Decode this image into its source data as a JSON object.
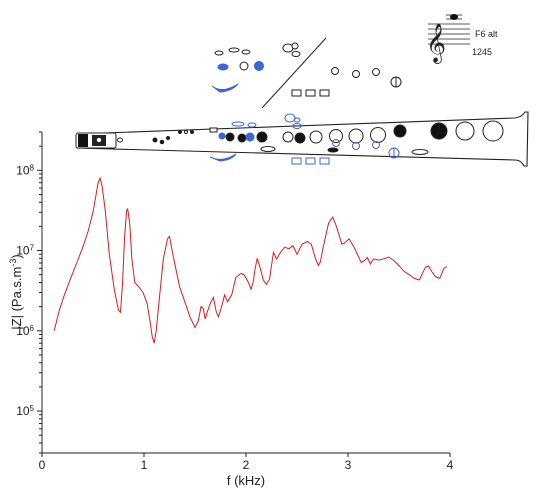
{
  "chart_data": {
    "type": "line",
    "title": "",
    "xlabel": "f (kHz)",
    "ylabel": "|Z| (Pa.s.m",
    "ylabel_sup": "-3",
    "ylabel_close": ")",
    "xlim": [
      0,
      4
    ],
    "ylim": [
      30000,
      300000000
    ],
    "yscale": "log",
    "grid": false,
    "x_ticks": [
      0,
      1,
      2,
      3,
      4
    ],
    "x_tick_labels": [
      "0",
      "1",
      "2",
      "3",
      "4"
    ],
    "y_ticks": [
      100000,
      1000000,
      10000000,
      100000000
    ],
    "y_tick_labels": [
      {
        "base": "10",
        "exp": "5"
      },
      {
        "base": "10",
        "exp": "6"
      },
      {
        "base": "10",
        "exp": "7"
      },
      {
        "base": "10",
        "exp": "8"
      }
    ],
    "series": [
      {
        "color": "#e0191e",
        "x": [
          0.12,
          0.17,
          0.22,
          0.28,
          0.34,
          0.4,
          0.45,
          0.5,
          0.53,
          0.55,
          0.57,
          0.59,
          0.62,
          0.66,
          0.71,
          0.75,
          0.77,
          0.79,
          0.81,
          0.83,
          0.84,
          0.86,
          0.88,
          0.91,
          0.95,
          0.99,
          1.03,
          1.06,
          1.08,
          1.1,
          1.12,
          1.15,
          1.19,
          1.23,
          1.25,
          1.27,
          1.3,
          1.35,
          1.4,
          1.45,
          1.5,
          1.53,
          1.56,
          1.58,
          1.6,
          1.62,
          1.65,
          1.68,
          1.71,
          1.73,
          1.75,
          1.77,
          1.79,
          1.82,
          1.86,
          1.9,
          1.95,
          1.98,
          2.02,
          2.05,
          2.07,
          2.09,
          2.11,
          2.14,
          2.17,
          2.2,
          2.23,
          2.25,
          2.27,
          2.3,
          2.34,
          2.38,
          2.42,
          2.46,
          2.5,
          2.55,
          2.6,
          2.64,
          2.68,
          2.71,
          2.73,
          2.75,
          2.78,
          2.81,
          2.85,
          2.88,
          2.91,
          2.94,
          2.97,
          3.01,
          3.06,
          3.1,
          3.13,
          3.16,
          3.19,
          3.22,
          3.25,
          3.3,
          3.35,
          3.4,
          3.45,
          3.5,
          3.55,
          3.6,
          3.65,
          3.7,
          3.73,
          3.76,
          3.79,
          3.82,
          3.86,
          3.9,
          3.94,
          3.97
        ],
        "y": [
          1000000,
          1800000,
          2800000,
          4500000,
          7000000,
          11000000,
          17000000,
          30000000,
          50000000,
          70000000,
          80000000,
          62000000,
          32000000,
          9000000,
          3200000,
          1800000,
          1700000,
          4000000,
          15000000,
          32000000,
          33000000,
          22000000,
          8000000,
          4000000,
          3500000,
          3000000,
          2200000,
          1300000,
          850000,
          700000,
          1000000,
          2500000,
          8000000,
          14000000,
          15000000,
          11000000,
          7000000,
          3500000,
          2300000,
          1500000,
          1100000,
          1300000,
          2000000,
          1900000,
          1400000,
          1700000,
          2200000,
          2600000,
          1700000,
          1500000,
          1800000,
          2200000,
          2800000,
          2300000,
          2800000,
          4600000,
          5200000,
          5000000,
          4100000,
          3300000,
          4000000,
          6000000,
          8000000,
          6000000,
          4300000,
          3800000,
          4400000,
          6500000,
          9500000,
          7800000,
          9600000,
          11000000,
          10500000,
          11500000,
          9000000,
          12000000,
          13000000,
          12000000,
          8000000,
          6500000,
          7300000,
          10000000,
          15000000,
          22000000,
          26000000,
          21000000,
          16000000,
          12000000,
          12500000,
          14000000,
          11000000,
          8500000,
          7100000,
          7500000,
          8200000,
          6800000,
          7900000,
          7600000,
          7900000,
          8300000,
          7500000,
          6500000,
          5500000,
          5000000,
          4500000,
          4300000,
          5200000,
          6200000,
          6400000,
          5500000,
          4700000,
          4500000,
          6000000,
          6300000
        ]
      }
    ],
    "inset": {
      "note_text": "F6 alt",
      "fingering_text": "1245"
    }
  }
}
